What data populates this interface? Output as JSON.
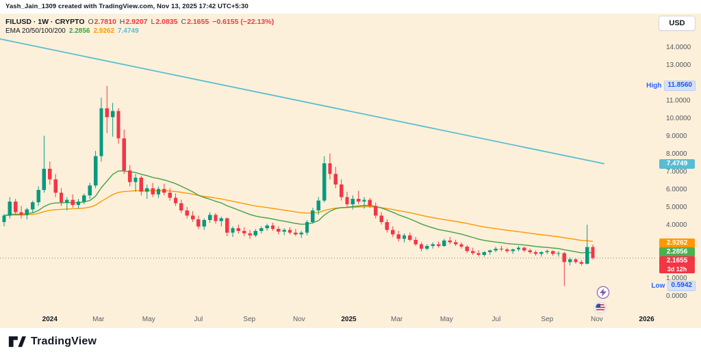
{
  "attribution": "Yash_Jain_1309 created with TradingView.com, Nov 13, 2025 17:42 UTC+5:30",
  "legend": {
    "title": "FILUSD · 1W · CRYPTO",
    "o_label": "O",
    "o_value": "2.7810",
    "h_label": "H",
    "h_value": "2.9207",
    "l_label": "L",
    "l_value": "2.0835",
    "c_label": "C",
    "c_value": "2.1655",
    "change": "−0.6155 (−22.13%)",
    "ema_label": "EMA 20/50/100/200",
    "ema20_value": "2.2856",
    "ema50_value": "2.9262",
    "ema100_value": "7.4749"
  },
  "axis": {
    "currency": "USD",
    "price_ticks": [
      {
        "label": "14.0000",
        "value": 14
      },
      {
        "label": "13.0000",
        "value": 13
      },
      {
        "label": "11.0000",
        "value": 11
      },
      {
        "label": "10.0000",
        "value": 10
      },
      {
        "label": "9.0000",
        "value": 9
      },
      {
        "label": "8.0000",
        "value": 8
      },
      {
        "label": "7.0000",
        "value": 7
      },
      {
        "label": "6.0000",
        "value": 6
      },
      {
        "label": "5.0000",
        "value": 5
      },
      {
        "label": "4.0000",
        "value": 4
      },
      {
        "label": "1.0000",
        "value": 1
      },
      {
        "label": "0.0000",
        "value": 0
      }
    ],
    "time_labels": [
      {
        "label": "2024",
        "week": 8,
        "year": true
      },
      {
        "label": "Mar",
        "week": 16.5,
        "year": false
      },
      {
        "label": "May",
        "week": 25.3,
        "year": false
      },
      {
        "label": "Jul",
        "week": 34,
        "year": false
      },
      {
        "label": "Sep",
        "week": 42.9,
        "year": false
      },
      {
        "label": "Nov",
        "week": 51.6,
        "year": false
      },
      {
        "label": "2025",
        "week": 60.3,
        "year": true
      },
      {
        "label": "Mar",
        "week": 68.7,
        "year": false
      },
      {
        "label": "May",
        "week": 77.4,
        "year": false
      },
      {
        "label": "Jul",
        "week": 86.1,
        "year": false
      },
      {
        "label": "Sep",
        "week": 95,
        "year": false
      },
      {
        "label": "Nov",
        "week": 103.7,
        "year": false
      },
      {
        "label": "2026",
        "week": 112.4,
        "year": true
      }
    ]
  },
  "badges": {
    "high_label": "High",
    "high_value": "11.8560",
    "low_label": "Low",
    "low_value": "0.5942",
    "ema100": "7.4749",
    "ema50": "2.9262",
    "ema20": "2.2856",
    "last_price": "2.1655",
    "countdown": "3d 12h"
  },
  "footer": {
    "brand": "TradingView"
  },
  "colors": {
    "up": "#089981",
    "down": "#f23645",
    "ema20": "#43a047",
    "ema50": "#ff9800",
    "ema100": "#58bdd1",
    "last_line": "#787b86",
    "background": "#fcf0da",
    "accent_blue": "#2962ff",
    "green_badge": "#4caf50"
  },
  "chart_data": {
    "type": "candlestick",
    "symbol": "FILUSD",
    "interval": "1W",
    "market": "CRYPTO",
    "title": "FILUSD · 1W · CRYPTO",
    "ylabel": "USD",
    "ylim": [
      0,
      15.2
    ],
    "x_range": [
      "Nov 2023",
      "Nov 2025"
    ],
    "range_high": 11.856,
    "range_low": 0.5942,
    "current_bar": {
      "open": 2.781,
      "high": 2.9207,
      "low": 2.0835,
      "close": 2.1655,
      "change": -0.6155,
      "change_pct": -22.13,
      "time_remaining": "3d 12h"
    },
    "ema": {
      "periods": [
        20,
        50,
        100,
        200
      ],
      "ema20_last": 2.2856,
      "ema50_last": 2.9262,
      "ema100_last": 7.4749
    },
    "trendline": {
      "name": "ema100-long-decline",
      "start_price": 14.5,
      "end_price": 7.4749
    },
    "ohlc": [
      [
        4.2,
        4.65,
        3.95,
        4.55
      ],
      [
        4.55,
        5.6,
        4.4,
        5.35
      ],
      [
        5.35,
        5.5,
        4.6,
        4.75
      ],
      [
        4.75,
        5.1,
        4.4,
        4.6
      ],
      [
        4.6,
        5.0,
        4.35,
        4.9
      ],
      [
        4.9,
        5.4,
        4.7,
        5.3
      ],
      [
        5.3,
        6.2,
        5.1,
        6.0
      ],
      [
        6.0,
        9.05,
        5.85,
        7.2
      ],
      [
        7.2,
        7.6,
        6.3,
        6.6
      ],
      [
        6.6,
        6.9,
        5.6,
        5.85
      ],
      [
        5.85,
        6.1,
        5.1,
        5.3
      ],
      [
        5.3,
        5.6,
        4.85,
        5.45
      ],
      [
        5.45,
        5.75,
        5.0,
        5.15
      ],
      [
        5.15,
        5.5,
        4.95,
        5.35
      ],
      [
        5.35,
        5.8,
        5.2,
        5.7
      ],
      [
        5.7,
        6.4,
        5.5,
        6.25
      ],
      [
        6.25,
        8.2,
        6.1,
        7.9
      ],
      [
        7.9,
        11.2,
        7.6,
        10.6
      ],
      [
        10.6,
        11.856,
        9.2,
        10.1
      ],
      [
        10.1,
        10.9,
        9.0,
        10.45
      ],
      [
        10.45,
        10.6,
        8.6,
        8.9
      ],
      [
        8.9,
        9.4,
        6.9,
        7.1
      ],
      [
        7.1,
        7.4,
        6.2,
        6.45
      ],
      [
        6.45,
        6.9,
        5.9,
        6.7
      ],
      [
        6.7,
        6.8,
        5.7,
        5.9
      ],
      [
        5.9,
        6.3,
        5.5,
        6.1
      ],
      [
        6.1,
        6.4,
        5.6,
        5.75
      ],
      [
        5.75,
        6.2,
        5.55,
        6.05
      ],
      [
        6.05,
        6.35,
        5.7,
        5.85
      ],
      [
        5.85,
        6.1,
        5.4,
        5.55
      ],
      [
        5.55,
        5.8,
        5.1,
        5.25
      ],
      [
        5.25,
        5.45,
        4.7,
        4.85
      ],
      [
        4.85,
        5.05,
        4.4,
        4.55
      ],
      [
        4.55,
        4.8,
        4.2,
        4.35
      ],
      [
        4.35,
        4.55,
        3.8,
        3.95
      ],
      [
        3.95,
        4.4,
        3.75,
        4.3
      ],
      [
        4.3,
        4.75,
        4.15,
        4.6
      ],
      [
        4.6,
        4.7,
        4.1,
        4.25
      ],
      [
        4.25,
        4.5,
        3.95,
        4.4
      ],
      [
        4.4,
        4.45,
        3.4,
        3.6
      ],
      [
        3.6,
        3.95,
        3.35,
        3.85
      ],
      [
        3.85,
        4.05,
        3.55,
        3.7
      ],
      [
        3.7,
        3.9,
        3.4,
        3.55
      ],
      [
        3.55,
        3.75,
        3.25,
        3.45
      ],
      [
        3.45,
        3.8,
        3.35,
        3.7
      ],
      [
        3.7,
        3.95,
        3.55,
        3.85
      ],
      [
        3.85,
        4.1,
        3.7,
        4.0
      ],
      [
        4.0,
        4.15,
        3.7,
        3.8
      ],
      [
        3.8,
        3.95,
        3.5,
        3.65
      ],
      [
        3.65,
        3.85,
        3.45,
        3.75
      ],
      [
        3.75,
        3.9,
        3.5,
        3.6
      ],
      [
        3.6,
        3.8,
        3.4,
        3.5
      ],
      [
        3.5,
        3.7,
        3.3,
        3.6
      ],
      [
        3.6,
        4.3,
        3.45,
        4.2
      ],
      [
        4.2,
        5.0,
        4.1,
        4.85
      ],
      [
        4.85,
        5.6,
        4.6,
        5.4
      ],
      [
        5.4,
        7.9,
        5.3,
        7.5
      ],
      [
        7.5,
        8.05,
        6.6,
        6.9
      ],
      [
        6.9,
        7.3,
        6.1,
        6.3
      ],
      [
        6.3,
        6.6,
        5.4,
        5.6
      ],
      [
        5.6,
        5.9,
        5.0,
        5.2
      ],
      [
        5.2,
        5.7,
        4.9,
        5.5
      ],
      [
        5.5,
        5.95,
        5.2,
        5.35
      ],
      [
        5.35,
        5.6,
        4.95,
        5.45
      ],
      [
        5.45,
        5.55,
        5.0,
        5.1
      ],
      [
        5.1,
        5.3,
        4.4,
        4.55
      ],
      [
        4.55,
        4.75,
        4.05,
        4.2
      ],
      [
        4.2,
        4.35,
        3.6,
        3.75
      ],
      [
        3.75,
        3.95,
        3.35,
        3.5
      ],
      [
        3.5,
        3.7,
        3.1,
        3.25
      ],
      [
        3.25,
        3.55,
        3.05,
        3.45
      ],
      [
        3.45,
        3.6,
        3.1,
        3.2
      ],
      [
        3.2,
        3.35,
        2.85,
        2.95
      ],
      [
        2.95,
        3.05,
        2.55,
        2.7
      ],
      [
        2.7,
        2.95,
        2.6,
        2.85
      ],
      [
        2.85,
        3.05,
        2.7,
        2.95
      ],
      [
        2.95,
        3.1,
        2.75,
        2.85
      ],
      [
        2.85,
        3.25,
        2.8,
        3.15
      ],
      [
        3.15,
        3.35,
        2.95,
        3.05
      ],
      [
        3.05,
        3.2,
        2.85,
        2.95
      ],
      [
        2.95,
        3.05,
        2.7,
        2.8
      ],
      [
        2.8,
        2.9,
        2.45,
        2.55
      ],
      [
        2.55,
        2.75,
        2.35,
        2.45
      ],
      [
        2.45,
        2.6,
        2.25,
        2.35
      ],
      [
        2.35,
        2.55,
        2.25,
        2.5
      ],
      [
        2.5,
        2.65,
        2.35,
        2.6
      ],
      [
        2.6,
        2.8,
        2.5,
        2.7
      ],
      [
        2.7,
        2.85,
        2.55,
        2.65
      ],
      [
        2.65,
        2.75,
        2.45,
        2.55
      ],
      [
        2.55,
        2.7,
        2.4,
        2.65
      ],
      [
        2.65,
        2.85,
        2.55,
        2.75
      ],
      [
        2.75,
        2.8,
        2.5,
        2.6
      ],
      [
        2.6,
        2.7,
        2.4,
        2.5
      ],
      [
        2.5,
        2.6,
        2.3,
        2.4
      ],
      [
        2.4,
        2.55,
        2.25,
        2.5
      ],
      [
        2.5,
        2.65,
        2.4,
        2.55
      ],
      [
        2.55,
        2.6,
        2.3,
        2.4
      ],
      [
        2.4,
        2.55,
        2.25,
        2.45
      ],
      [
        2.45,
        2.5,
        0.5942,
        1.95
      ],
      [
        1.95,
        2.2,
        1.75,
        2.1
      ],
      [
        2.1,
        2.15,
        1.85,
        1.95
      ],
      [
        1.95,
        2.05,
        1.75,
        1.85
      ],
      [
        1.85,
        4.05,
        1.8,
        2.78
      ],
      [
        2.781,
        2.9207,
        2.0835,
        2.1655
      ]
    ]
  }
}
